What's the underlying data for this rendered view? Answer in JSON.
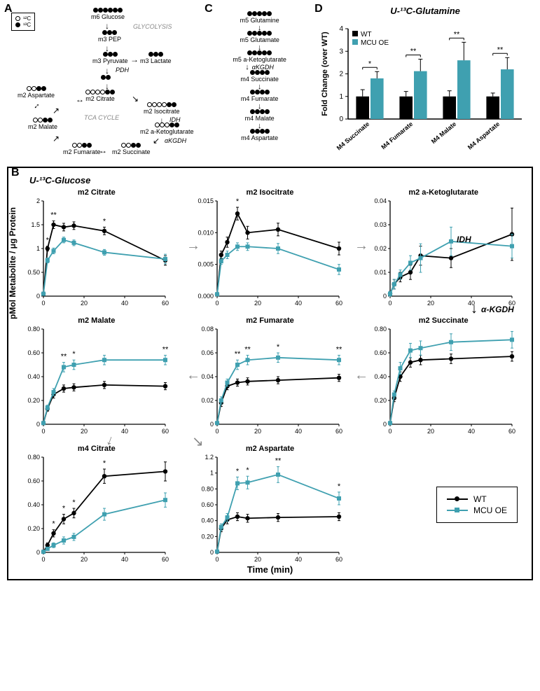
{
  "panels": {
    "a": "A",
    "b": "B",
    "c": "C",
    "d": "D"
  },
  "isotope_legend": {
    "c12": "¹²C",
    "c13": "¹³C"
  },
  "panel_a": {
    "title_pathways": {
      "glycolysis": "GLYCOLYSIS",
      "tca": "TCA CYCLE"
    },
    "enzymes": {
      "pdh": "PDH",
      "idh": "IDH",
      "akgdh": "αKGDH"
    },
    "metabolites": {
      "glucose": "m6 Glucose",
      "pep": "m3 PEP",
      "pyruvate": "m3 Pyruvate",
      "lactate": "m3 Lactate",
      "citrate": "m2 Citrate",
      "isocitrate": "m2 Isocitrate",
      "akg": "m2 a-Ketoglutarate",
      "succinate": "m2 Succinate",
      "fumarate": "m2 Fumarate",
      "malate": "m2 Malate",
      "aspartate": "m2 Aspartate"
    }
  },
  "panel_c": {
    "enzyme": "αKGDH",
    "metabolites": {
      "glutamine": "m5 Glutamine",
      "glutamate": "m5 Glutamate",
      "akg": "m5 a-Ketoglutarate",
      "succinate": "m4 Succinate",
      "fumarate": "m4 Fumarate",
      "malate": "m4 Malate",
      "aspartate": "m4 Aspartate"
    }
  },
  "panel_d": {
    "title": "U-¹³C-Glutamine",
    "ylabel": "Fold Change (over WT)",
    "legend": {
      "wt": "WT",
      "oe": "MCU OE"
    },
    "categories": [
      "M4 Succinate",
      "M4 Fumarate",
      "M4 Malate",
      "M4 Aspartate"
    ],
    "wt_values": [
      1.0,
      1.0,
      1.0,
      1.0
    ],
    "wt_err": [
      0.3,
      0.22,
      0.25,
      0.15
    ],
    "oe_values": [
      1.8,
      2.12,
      2.6,
      2.2
    ],
    "oe_err": [
      0.3,
      0.53,
      0.8,
      0.52
    ],
    "sig": [
      "*",
      "**",
      "**",
      "**"
    ],
    "ylim": [
      0,
      4
    ],
    "ytick_step": 1,
    "colors": {
      "wt": "#000000",
      "oe": "#3fa0b0"
    }
  },
  "panel_b": {
    "title": "U-¹³C-Glucose",
    "ylabel": "pMol Metabolite / μg Protein",
    "xlabel": "Time (min)",
    "legend": {
      "wt": "WT",
      "oe": "MCU OE"
    },
    "colors": {
      "wt": "#000000",
      "oe": "#3fa0b0"
    },
    "time": [
      0,
      2,
      5,
      10,
      15,
      30,
      60
    ],
    "enzymes": {
      "idh": "IDH",
      "akgdh": "α-KGDH"
    },
    "charts": [
      {
        "title": "m2 Citrate",
        "ylim": [
          0,
          2.0
        ],
        "yticks": [
          0,
          0.5,
          1.0,
          1.5,
          2.0
        ],
        "wt": [
          0.05,
          1.0,
          1.5,
          1.45,
          1.48,
          1.37,
          0.75
        ],
        "oe": [
          0.05,
          0.75,
          0.95,
          1.18,
          1.12,
          0.92,
          0.78
        ],
        "wt_err": [
          0.02,
          0.05,
          0.08,
          0.08,
          0.08,
          0.08,
          0.1
        ],
        "oe_err": [
          0.02,
          0.05,
          0.06,
          0.06,
          0.06,
          0.06,
          0.1
        ],
        "sig": {
          "2": "*",
          "5": "**",
          "30": "*"
        }
      },
      {
        "title": "m2 Isocitrate",
        "ylim": [
          0,
          0.015
        ],
        "yticks": [
          0,
          0.005,
          0.01,
          0.015
        ],
        "wt": [
          0.0003,
          0.0065,
          0.0085,
          0.013,
          0.01,
          0.0105,
          0.0075
        ],
        "oe": [
          0.0003,
          0.0055,
          0.0065,
          0.0078,
          0.0078,
          0.0075,
          0.0042
        ],
        "wt_err": [
          0.0002,
          0.0006,
          0.0008,
          0.001,
          0.001,
          0.001,
          0.001
        ],
        "oe_err": [
          0.0002,
          0.0005,
          0.0006,
          0.0006,
          0.0006,
          0.0008,
          0.0008
        ],
        "sig": {
          "10": "*"
        }
      },
      {
        "title": "m2 a-Ketoglutarate",
        "ylim": [
          0,
          0.04
        ],
        "yticks": [
          0,
          0.01,
          0.02,
          0.03,
          0.04
        ],
        "wt": [
          0.001,
          0.005,
          0.008,
          0.01,
          0.017,
          0.016,
          0.026
        ],
        "oe": [
          0.001,
          0.005,
          0.009,
          0.014,
          0.016,
          0.023,
          0.021
        ],
        "wt_err": [
          0.001,
          0.002,
          0.002,
          0.003,
          0.004,
          0.004,
          0.011
        ],
        "oe_err": [
          0.001,
          0.002,
          0.002,
          0.003,
          0.006,
          0.006,
          0.005
        ],
        "sig": {}
      },
      {
        "title": "m2 Malate",
        "ylim": [
          0,
          0.8
        ],
        "yticks": [
          0,
          0.2,
          0.4,
          0.6,
          0.8
        ],
        "wt": [
          0.01,
          0.13,
          0.25,
          0.3,
          0.31,
          0.33,
          0.32
        ],
        "oe": [
          0.01,
          0.14,
          0.27,
          0.48,
          0.5,
          0.54,
          0.54
        ],
        "wt_err": [
          0.01,
          0.02,
          0.03,
          0.03,
          0.03,
          0.03,
          0.03
        ],
        "oe_err": [
          0.01,
          0.02,
          0.03,
          0.04,
          0.04,
          0.04,
          0.04
        ],
        "sig": {
          "10": "**",
          "15": "*",
          "60": "**"
        }
      },
      {
        "title": "m2 Fumarate",
        "ylim": [
          0,
          0.08
        ],
        "yticks": [
          0,
          0.02,
          0.04,
          0.06,
          0.08
        ],
        "wt": [
          0.001,
          0.018,
          0.032,
          0.035,
          0.036,
          0.037,
          0.039
        ],
        "oe": [
          0.001,
          0.02,
          0.035,
          0.05,
          0.054,
          0.056,
          0.054
        ],
        "wt_err": [
          0.001,
          0.003,
          0.003,
          0.003,
          0.003,
          0.003,
          0.003
        ],
        "oe_err": [
          0.001,
          0.003,
          0.003,
          0.004,
          0.004,
          0.004,
          0.004
        ],
        "sig": {
          "10": "**",
          "15": "**",
          "30": "*",
          "60": "**"
        }
      },
      {
        "title": "m2 Succinate",
        "ylim": [
          0,
          0.8
        ],
        "yticks": [
          0,
          0.2,
          0.4,
          0.6,
          0.8
        ],
        "wt": [
          0.01,
          0.22,
          0.4,
          0.52,
          0.54,
          0.55,
          0.57
        ],
        "oe": [
          0.01,
          0.25,
          0.47,
          0.62,
          0.64,
          0.69,
          0.71
        ],
        "wt_err": [
          0.01,
          0.03,
          0.04,
          0.04,
          0.04,
          0.04,
          0.04
        ],
        "oe_err": [
          0.01,
          0.03,
          0.05,
          0.06,
          0.06,
          0.07,
          0.07
        ],
        "sig": {}
      },
      {
        "title": "m4 Citrate",
        "ylim": [
          0,
          0.8
        ],
        "yticks": [
          0,
          0.2,
          0.4,
          0.6,
          0.8
        ],
        "wt": [
          0.005,
          0.06,
          0.16,
          0.28,
          0.33,
          0.64,
          0.68
        ],
        "oe": [
          0.005,
          0.03,
          0.06,
          0.1,
          0.13,
          0.32,
          0.44
        ],
        "wt_err": [
          0.005,
          0.02,
          0.03,
          0.04,
          0.04,
          0.06,
          0.08
        ],
        "oe_err": [
          0.005,
          0.01,
          0.02,
          0.03,
          0.03,
          0.05,
          0.06
        ],
        "sig": {
          "5": "*",
          "10": "*",
          "15": "*",
          "30": "*"
        }
      },
      {
        "title": "m2 Aspartate",
        "ylim": [
          0,
          1.2
        ],
        "yticks": [
          0,
          0.2,
          0.4,
          0.6,
          0.8,
          1.0,
          1.2
        ],
        "wt": [
          0.01,
          0.3,
          0.41,
          0.45,
          0.43,
          0.44,
          0.45
        ],
        "oe": [
          0.01,
          0.32,
          0.44,
          0.87,
          0.88,
          0.98,
          0.68
        ],
        "wt_err": [
          0.01,
          0.04,
          0.05,
          0.05,
          0.05,
          0.05,
          0.05
        ],
        "oe_err": [
          0.01,
          0.04,
          0.05,
          0.08,
          0.08,
          0.1,
          0.08
        ],
        "sig": {
          "10": "*",
          "15": "*",
          "30": "**",
          "60": "*"
        }
      }
    ]
  }
}
